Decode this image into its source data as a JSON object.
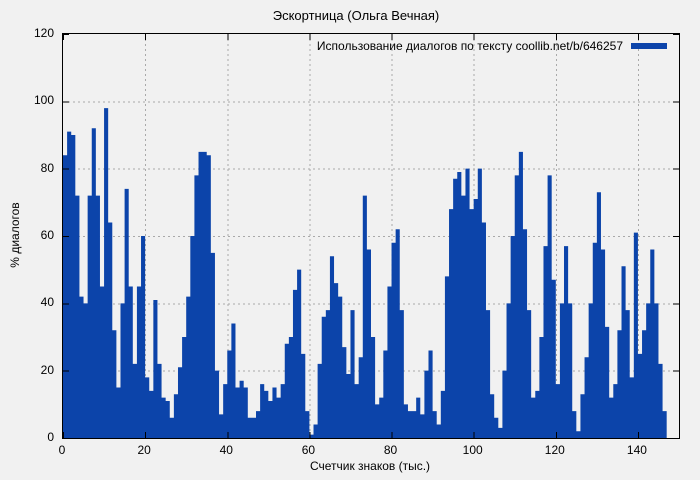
{
  "title": "Эскортница (Ольга Вечная)",
  "legend": {
    "label": "Использование диалогов по тексту coollib.net/b/646257",
    "swatch": "series-color-line"
  },
  "colors": {
    "series": "#0c44aa",
    "background": "#f1f1f1",
    "grid": "#a9a9a9",
    "axis": "#000000",
    "text": "#000000"
  },
  "chart_data": {
    "type": "bar",
    "title": "Эскортница (Ольга Вечная)",
    "xlabel": "Счетчик знаков (тыс.)",
    "ylabel": "% диалогов",
    "xlim": [
      0,
      150
    ],
    "ylim": [
      0,
      120
    ],
    "x_ticks": [
      0,
      20,
      40,
      60,
      80,
      100,
      120,
      140
    ],
    "y_ticks": [
      0,
      20,
      40,
      60,
      80,
      100,
      120
    ],
    "grid": true,
    "grid_style": "dotted",
    "legend_position": "top-right-inside",
    "series": [
      {
        "name": "Использование диалогов по тексту coollib.net/b/646257",
        "x_start": 0,
        "x_step": 1,
        "values": [
          84,
          91,
          90,
          72,
          42,
          40,
          72,
          92,
          72,
          45,
          98,
          64,
          32,
          15,
          40,
          74,
          45,
          22,
          45,
          60,
          18,
          14,
          41,
          22,
          12,
          11,
          6,
          13,
          21,
          30,
          42,
          60,
          78,
          85,
          85,
          84,
          55,
          20,
          7,
          16,
          26,
          34,
          15,
          17,
          15,
          6,
          6,
          8,
          16,
          14,
          11,
          15,
          12,
          16,
          28,
          30,
          44,
          50,
          25,
          8,
          1,
          4,
          22,
          36,
          38,
          54,
          46,
          42,
          27,
          19,
          38,
          16,
          24,
          72,
          56,
          30,
          10,
          12,
          26,
          45,
          58,
          62,
          38,
          10,
          8,
          8,
          12,
          7,
          20,
          26,
          8,
          4,
          14,
          48,
          68,
          77,
          79,
          72,
          80,
          68,
          71,
          80,
          64,
          38,
          13,
          6,
          3,
          20,
          40,
          60,
          78,
          85,
          62,
          38,
          12,
          14,
          30,
          57,
          78,
          47,
          16,
          40,
          57,
          40,
          8,
          2,
          13,
          24,
          40,
          58,
          73,
          56,
          33,
          12,
          16,
          32,
          51,
          38,
          18,
          61,
          25,
          32,
          40,
          56,
          40,
          22,
          8
        ]
      }
    ]
  }
}
